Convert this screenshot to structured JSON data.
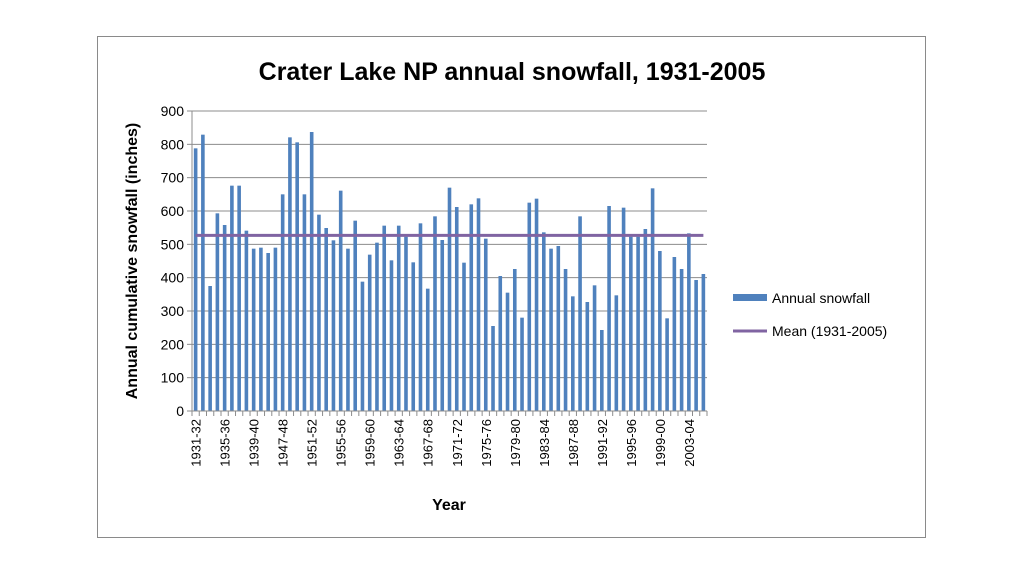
{
  "chart_data": {
    "type": "bar",
    "title": "Crater Lake NP annual snowfall, 1931-2005",
    "xlabel": "Year",
    "ylabel": "Annual cumulative snowfall (inches)",
    "ylim": [
      0,
      900
    ],
    "yticks": [
      0,
      100,
      200,
      300,
      400,
      500,
      600,
      700,
      800,
      900
    ],
    "grid": true,
    "legend_placement": "right",
    "categories": [
      "1931-32",
      "1932-33",
      "1933-34",
      "1934-35",
      "1935-36",
      "1936-37",
      "1937-38",
      "1938-39",
      "1939-40",
      "1940-41",
      "1941-42",
      "1942-43",
      "1947-48",
      "1948-49",
      "1949-50",
      "1950-51",
      "1951-52",
      "1952-53",
      "1953-54",
      "1954-55",
      "1955-56",
      "1956-57",
      "1957-58",
      "1958-59",
      "1959-60",
      "1960-61",
      "1961-62",
      "1962-63",
      "1963-64",
      "1964-65",
      "1965-66",
      "1966-67",
      "1967-68",
      "1968-69",
      "1969-70",
      "1970-71",
      "1971-72",
      "1972-73",
      "1973-74",
      "1974-75",
      "1975-76",
      "1976-77",
      "1977-78",
      "1978-79",
      "1979-80",
      "1980-81",
      "1981-82",
      "1982-83",
      "1983-84",
      "1984-85",
      "1985-86",
      "1986-87",
      "1987-88",
      "1988-89",
      "1989-90",
      "1990-91",
      "1991-92",
      "1992-93",
      "1993-94",
      "1994-95",
      "1995-96",
      "1996-97",
      "1997-98",
      "1998-99",
      "1999-00",
      "2000-01",
      "2001-02",
      "2002-03",
      "2003-04",
      "2004-05",
      "2005-06"
    ],
    "tick_labels_shown": [
      "1931-32",
      "1935-36",
      "1939-40",
      "1947-48",
      "1951-52",
      "1955-56",
      "1959-60",
      "1963-64",
      "1967-68",
      "1971-72",
      "1975-76",
      "1979-80",
      "1983-84",
      "1987-88",
      "1991-92",
      "1995-96",
      "1999-00",
      "2003-04"
    ],
    "series": [
      {
        "name": "Annual snowfall",
        "type": "bar",
        "color": "#4f81bd",
        "values": [
          788,
          829,
          375,
          593,
          558,
          676,
          676,
          541,
          487,
          490,
          474,
          490,
          650,
          821,
          806,
          650,
          837,
          589,
          549,
          512,
          661,
          487,
          571,
          388,
          469,
          505,
          556,
          452,
          556,
          523,
          446,
          563,
          367,
          584,
          513,
          670,
          612,
          445,
          620,
          638,
          517,
          255,
          405,
          355,
          426,
          280,
          625,
          637,
          536,
          487,
          495,
          426,
          344,
          584,
          327,
          377,
          243,
          615,
          347,
          610,
          523,
          523,
          546,
          668,
          480,
          278,
          462,
          426,
          533,
          393,
          411
        ]
      },
      {
        "name": "Mean  (1931-2005)",
        "type": "line",
        "color": "#8064a2",
        "value": 527
      }
    ]
  }
}
